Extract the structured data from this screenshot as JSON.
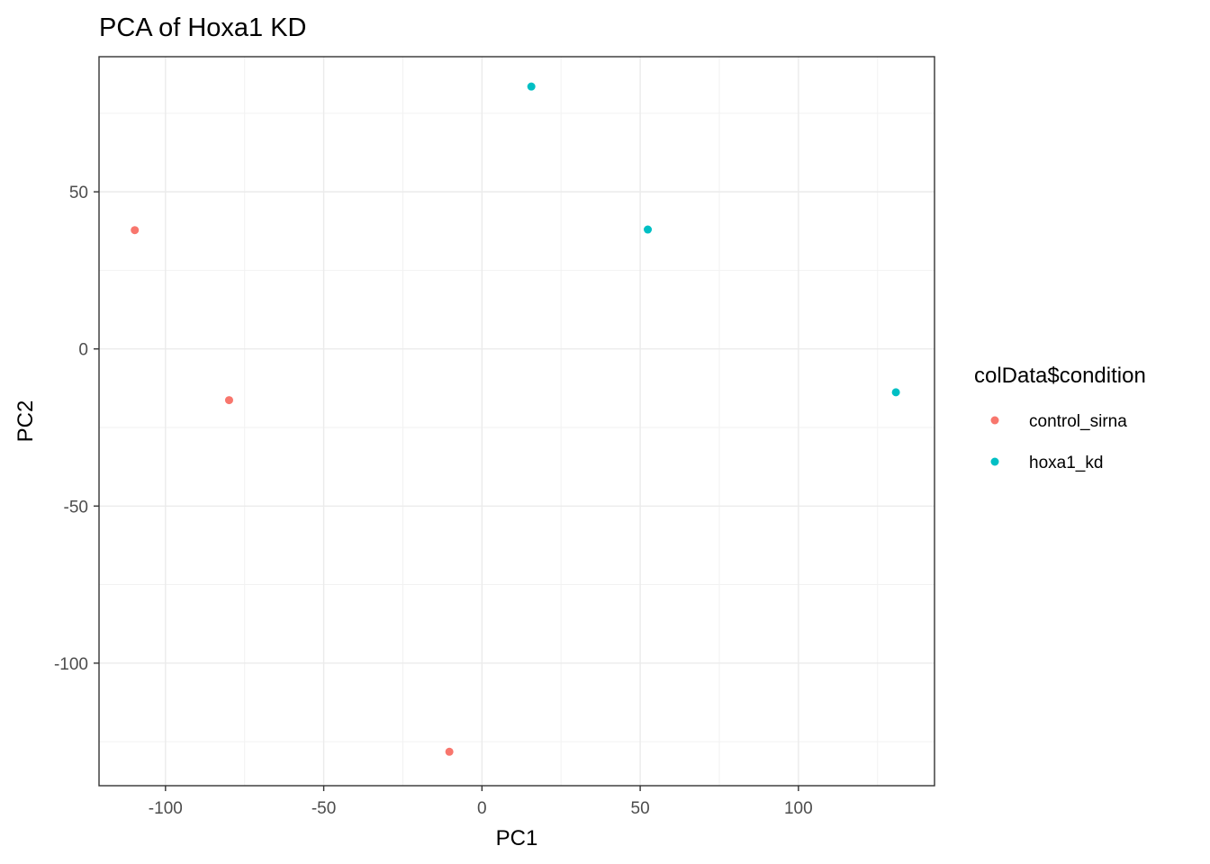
{
  "chart_data": {
    "type": "scatter",
    "title": "PCA of Hoxa1 KD",
    "xlabel": "PC1",
    "ylabel": "PC2",
    "xlim": [
      -121,
      143
    ],
    "ylim": [
      -139,
      93
    ],
    "x_ticks": [
      -100,
      -50,
      0,
      50,
      100
    ],
    "y_ticks": [
      -100,
      -50,
      0,
      50
    ],
    "x_tick_labels": [
      "-100",
      "-50",
      "0",
      "50",
      "100"
    ],
    "y_tick_labels": [
      "-100",
      "-50",
      "0",
      "50"
    ],
    "grid": true,
    "legend": {
      "title": "colData$condition",
      "placement": "right"
    },
    "series": [
      {
        "name": "control_sirna",
        "color": "#F8766D",
        "points": [
          {
            "x": -109.7,
            "y": 37.8
          },
          {
            "x": -79.9,
            "y": -16.3
          },
          {
            "x": -10.3,
            "y": -128.2
          }
        ]
      },
      {
        "name": "hoxa1_kd",
        "color": "#00BFC4",
        "points": [
          {
            "x": 15.6,
            "y": 83.5
          },
          {
            "x": 52.4,
            "y": 38.0
          },
          {
            "x": 130.8,
            "y": -13.8
          }
        ]
      }
    ]
  }
}
